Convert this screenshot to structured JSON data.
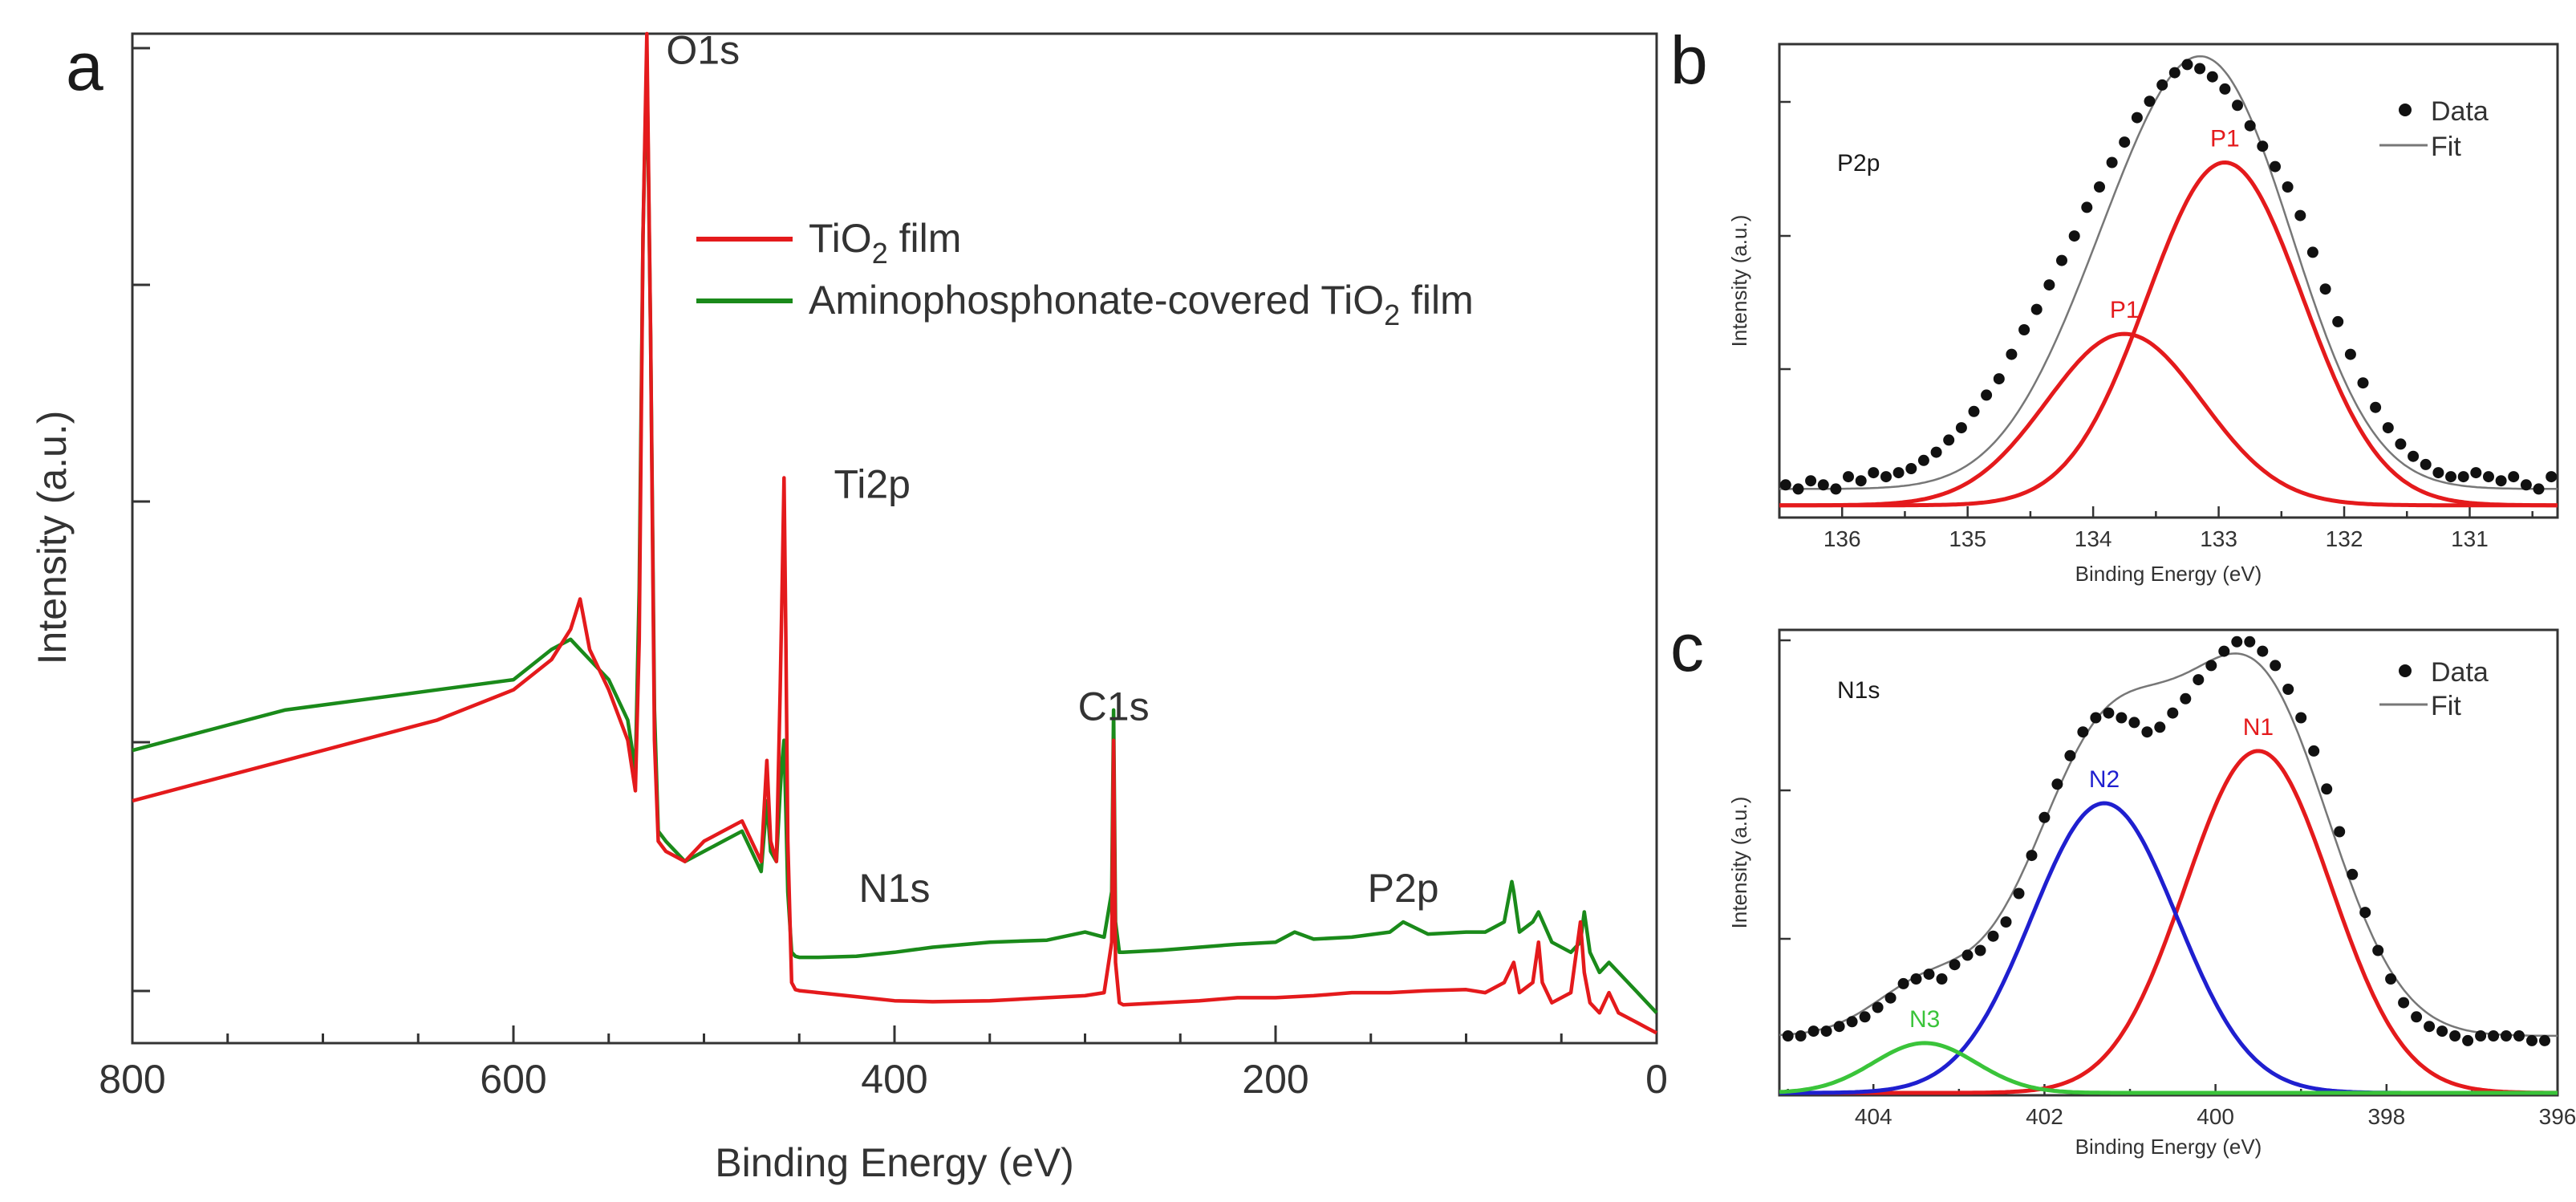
{
  "chart_data": [
    {
      "panel": "a",
      "type": "line",
      "xlabel": "Binding Energy (eV)",
      "ylabel": "Intensity (a.u.)",
      "xlim": [
        800,
        0
      ],
      "ylim": [
        0,
        100
      ],
      "x_ticks": [
        800,
        600,
        400,
        200,
        0
      ],
      "peak_labels": [
        {
          "text": "O1s",
          "x": 530,
          "y": 97
        },
        {
          "text": "Ti2p",
          "x": 458,
          "y": 54
        },
        {
          "text": "C1s",
          "x": 285,
          "y": 32
        },
        {
          "text": "N1s",
          "x": 400,
          "y": 14
        },
        {
          "text": "P2p",
          "x": 133,
          "y": 14
        }
      ],
      "legend": {
        "position": "top-right",
        "entries": [
          {
            "label_main": "TiO",
            "label_sub": "2",
            "label_rest": " film",
            "color": "#e41a1c"
          },
          {
            "label_main": "Aminophosphonate-covered TiO",
            "label_sub": "2",
            "label_rest": " film",
            "color": "#1a8a1a"
          }
        ]
      },
      "series": [
        {
          "name": "TiO2 film",
          "color": "#e41a1c",
          "x": [
            800,
            760,
            720,
            680,
            640,
            600,
            580,
            570,
            565,
            560,
            550,
            540,
            536,
            534,
            532,
            530,
            528,
            526,
            524,
            520,
            510,
            500,
            490,
            480,
            470,
            467,
            465,
            462,
            460,
            459,
            458,
            457,
            456,
            454,
            452,
            450,
            440,
            420,
            400,
            380,
            350,
            320,
            300,
            290,
            286,
            285,
            284,
            282,
            280,
            260,
            240,
            220,
            200,
            180,
            160,
            140,
            120,
            100,
            90,
            80,
            75,
            74,
            72,
            65,
            62,
            60,
            55,
            45,
            40,
            38,
            35,
            30,
            25,
            20,
            15,
            10,
            5,
            0
          ],
          "y": [
            24,
            26,
            28,
            30,
            32,
            35,
            38,
            41,
            44,
            39,
            35,
            30,
            25,
            40,
            80,
            100,
            70,
            30,
            20,
            19,
            18,
            20,
            21,
            22,
            18,
            28,
            20,
            18,
            35,
            45,
            56,
            40,
            20,
            6,
            5.3,
            5.2,
            5,
            4.6,
            4.2,
            4.1,
            4.2,
            4.5,
            4.7,
            5,
            10,
            30,
            8,
            4,
            3.8,
            4,
            4.2,
            4.5,
            4.5,
            4.7,
            5,
            5,
            5.2,
            5.3,
            5,
            6,
            8,
            7,
            5,
            6,
            10,
            6,
            4,
            5,
            12,
            7,
            4,
            3,
            5,
            3,
            2.5,
            2,
            1.5,
            1
          ]
        },
        {
          "name": "Aminophosphonate-covered TiO2 film",
          "color": "#1a8a1a",
          "x": [
            800,
            760,
            720,
            680,
            640,
            600,
            580,
            570,
            565,
            560,
            550,
            540,
            536,
            534,
            532,
            530,
            528,
            526,
            524,
            520,
            510,
            500,
            490,
            480,
            470,
            467,
            465,
            462,
            460,
            459,
            458,
            457,
            456,
            454,
            452,
            450,
            440,
            420,
            400,
            380,
            350,
            320,
            300,
            290,
            286,
            285,
            284,
            282,
            280,
            260,
            240,
            220,
            200,
            190,
            180,
            160,
            140,
            133,
            120,
            100,
            90,
            80,
            76,
            75,
            72,
            65,
            62,
            55,
            45,
            40,
            38,
            35,
            30,
            25,
            20,
            15,
            10,
            5,
            0
          ],
          "y": [
            29,
            31,
            33,
            34,
            35,
            36,
            39,
            40,
            39,
            38,
            36,
            32,
            27,
            45,
            80,
            98,
            70,
            33,
            21,
            20,
            18,
            19,
            20,
            21,
            17,
            24,
            19,
            18,
            25,
            28,
            30,
            23,
            15,
            9,
            8.6,
            8.5,
            8.5,
            8.6,
            9,
            9.5,
            10,
            10.2,
            11,
            10.5,
            15,
            33,
            12,
            9,
            9,
            9.2,
            9.5,
            9.8,
            10,
            11,
            10.3,
            10.5,
            11,
            12,
            10.8,
            11,
            11,
            12,
            16,
            15,
            11,
            12,
            13,
            10,
            9,
            10,
            13,
            9,
            7,
            8,
            7,
            6,
            5,
            4,
            3
          ]
        }
      ]
    },
    {
      "panel": "b",
      "type": "scatter",
      "title": "P2p",
      "xlabel": "Binding Energy (eV)",
      "ylabel": "Intensity (a.u.)",
      "xlim": [
        136.5,
        130.3
      ],
      "ylim": [
        -0.03,
        1.13
      ],
      "x_ticks": [
        136,
        135,
        134,
        133,
        132,
        131
      ],
      "legend": {
        "position": "top-right",
        "entries": [
          {
            "label": "Data",
            "marker": "dot"
          },
          {
            "label": "Fit",
            "marker": "line"
          }
        ]
      },
      "components": [
        {
          "label": "P1",
          "center": 133.75,
          "amplitude": 0.42,
          "sigma": 0.62,
          "color": "#e41a1c"
        },
        {
          "label": "P1",
          "center": 132.95,
          "amplitude": 0.84,
          "sigma": 0.62,
          "color": "#e41a1c"
        }
      ],
      "baseline": 0.04,
      "data_points": {
        "x": [
          136.45,
          136.35,
          136.25,
          136.15,
          136.05,
          135.95,
          135.85,
          135.75,
          135.65,
          135.55,
          135.45,
          135.35,
          135.25,
          135.15,
          135.05,
          134.95,
          134.85,
          134.75,
          134.65,
          134.55,
          134.45,
          134.35,
          134.25,
          134.15,
          134.05,
          133.95,
          133.85,
          133.75,
          133.65,
          133.55,
          133.45,
          133.35,
          133.25,
          133.15,
          133.05,
          132.95,
          132.85,
          132.75,
          132.65,
          132.55,
          132.45,
          132.35,
          132.25,
          132.15,
          132.05,
          131.95,
          131.85,
          131.75,
          131.65,
          131.55,
          131.45,
          131.35,
          131.25,
          131.15,
          131.05,
          130.95,
          130.85,
          130.75,
          130.65,
          130.55,
          130.45,
          130.35
        ],
        "y": [
          0.05,
          0.04,
          0.06,
          0.05,
          0.04,
          0.07,
          0.06,
          0.08,
          0.07,
          0.08,
          0.09,
          0.11,
          0.13,
          0.16,
          0.19,
          0.23,
          0.27,
          0.31,
          0.37,
          0.43,
          0.48,
          0.54,
          0.6,
          0.66,
          0.73,
          0.78,
          0.84,
          0.89,
          0.95,
          0.99,
          1.03,
          1.06,
          1.08,
          1.07,
          1.05,
          1.02,
          0.98,
          0.93,
          0.88,
          0.83,
          0.78,
          0.71,
          0.62,
          0.53,
          0.45,
          0.37,
          0.3,
          0.24,
          0.19,
          0.15,
          0.12,
          0.1,
          0.08,
          0.07,
          0.07,
          0.08,
          0.07,
          0.06,
          0.07,
          0.05,
          0.04,
          0.07
        ]
      }
    },
    {
      "panel": "c",
      "type": "scatter",
      "title": "N1s",
      "xlabel": "Binding Energy (eV)",
      "ylabel": "Intensity (a.u.)",
      "xlim": [
        405.1,
        396.0
      ],
      "ylim": [
        -0.005,
        0.975
      ],
      "x_ticks": [
        404,
        402,
        400,
        398,
        396
      ],
      "legend": {
        "position": "top-right",
        "entries": [
          {
            "label": "Data",
            "marker": "dot"
          },
          {
            "label": "Fit",
            "marker": "line"
          }
        ]
      },
      "components": [
        {
          "label": "N1",
          "center": 399.5,
          "amplitude": 0.72,
          "sigma": 0.85,
          "color": "#e41a1c"
        },
        {
          "label": "N2",
          "center": 401.3,
          "amplitude": 0.61,
          "sigma": 0.85,
          "color": "#1f1fcf"
        },
        {
          "label": "N3",
          "center": 403.4,
          "amplitude": 0.105,
          "sigma": 0.6,
          "color": "#3ac43a"
        }
      ],
      "baseline": 0.12,
      "data_points": {
        "x": [
          405.0,
          404.85,
          404.7,
          404.55,
          404.4,
          404.25,
          404.1,
          403.95,
          403.8,
          403.65,
          403.5,
          403.35,
          403.2,
          403.05,
          402.9,
          402.75,
          402.6,
          402.45,
          402.3,
          402.15,
          402.0,
          401.85,
          401.7,
          401.55,
          401.4,
          401.25,
          401.1,
          400.95,
          400.8,
          400.65,
          400.5,
          400.35,
          400.2,
          400.05,
          399.9,
          399.75,
          399.6,
          399.45,
          399.3,
          399.15,
          399.0,
          398.85,
          398.7,
          398.55,
          398.4,
          398.25,
          398.1,
          397.95,
          397.8,
          397.65,
          397.5,
          397.35,
          397.2,
          397.05,
          396.9,
          396.75,
          396.6,
          396.45,
          396.3,
          396.15
        ],
        "y": [
          0.12,
          0.12,
          0.13,
          0.13,
          0.14,
          0.15,
          0.16,
          0.18,
          0.2,
          0.23,
          0.24,
          0.25,
          0.24,
          0.27,
          0.29,
          0.3,
          0.33,
          0.36,
          0.42,
          0.5,
          0.58,
          0.65,
          0.71,
          0.76,
          0.79,
          0.8,
          0.79,
          0.78,
          0.76,
          0.77,
          0.8,
          0.83,
          0.87,
          0.9,
          0.93,
          0.95,
          0.95,
          0.93,
          0.9,
          0.85,
          0.79,
          0.72,
          0.64,
          0.55,
          0.46,
          0.38,
          0.3,
          0.24,
          0.19,
          0.16,
          0.14,
          0.13,
          0.12,
          0.11,
          0.12,
          0.12,
          0.12,
          0.12,
          0.11,
          0.11
        ]
      }
    }
  ]
}
